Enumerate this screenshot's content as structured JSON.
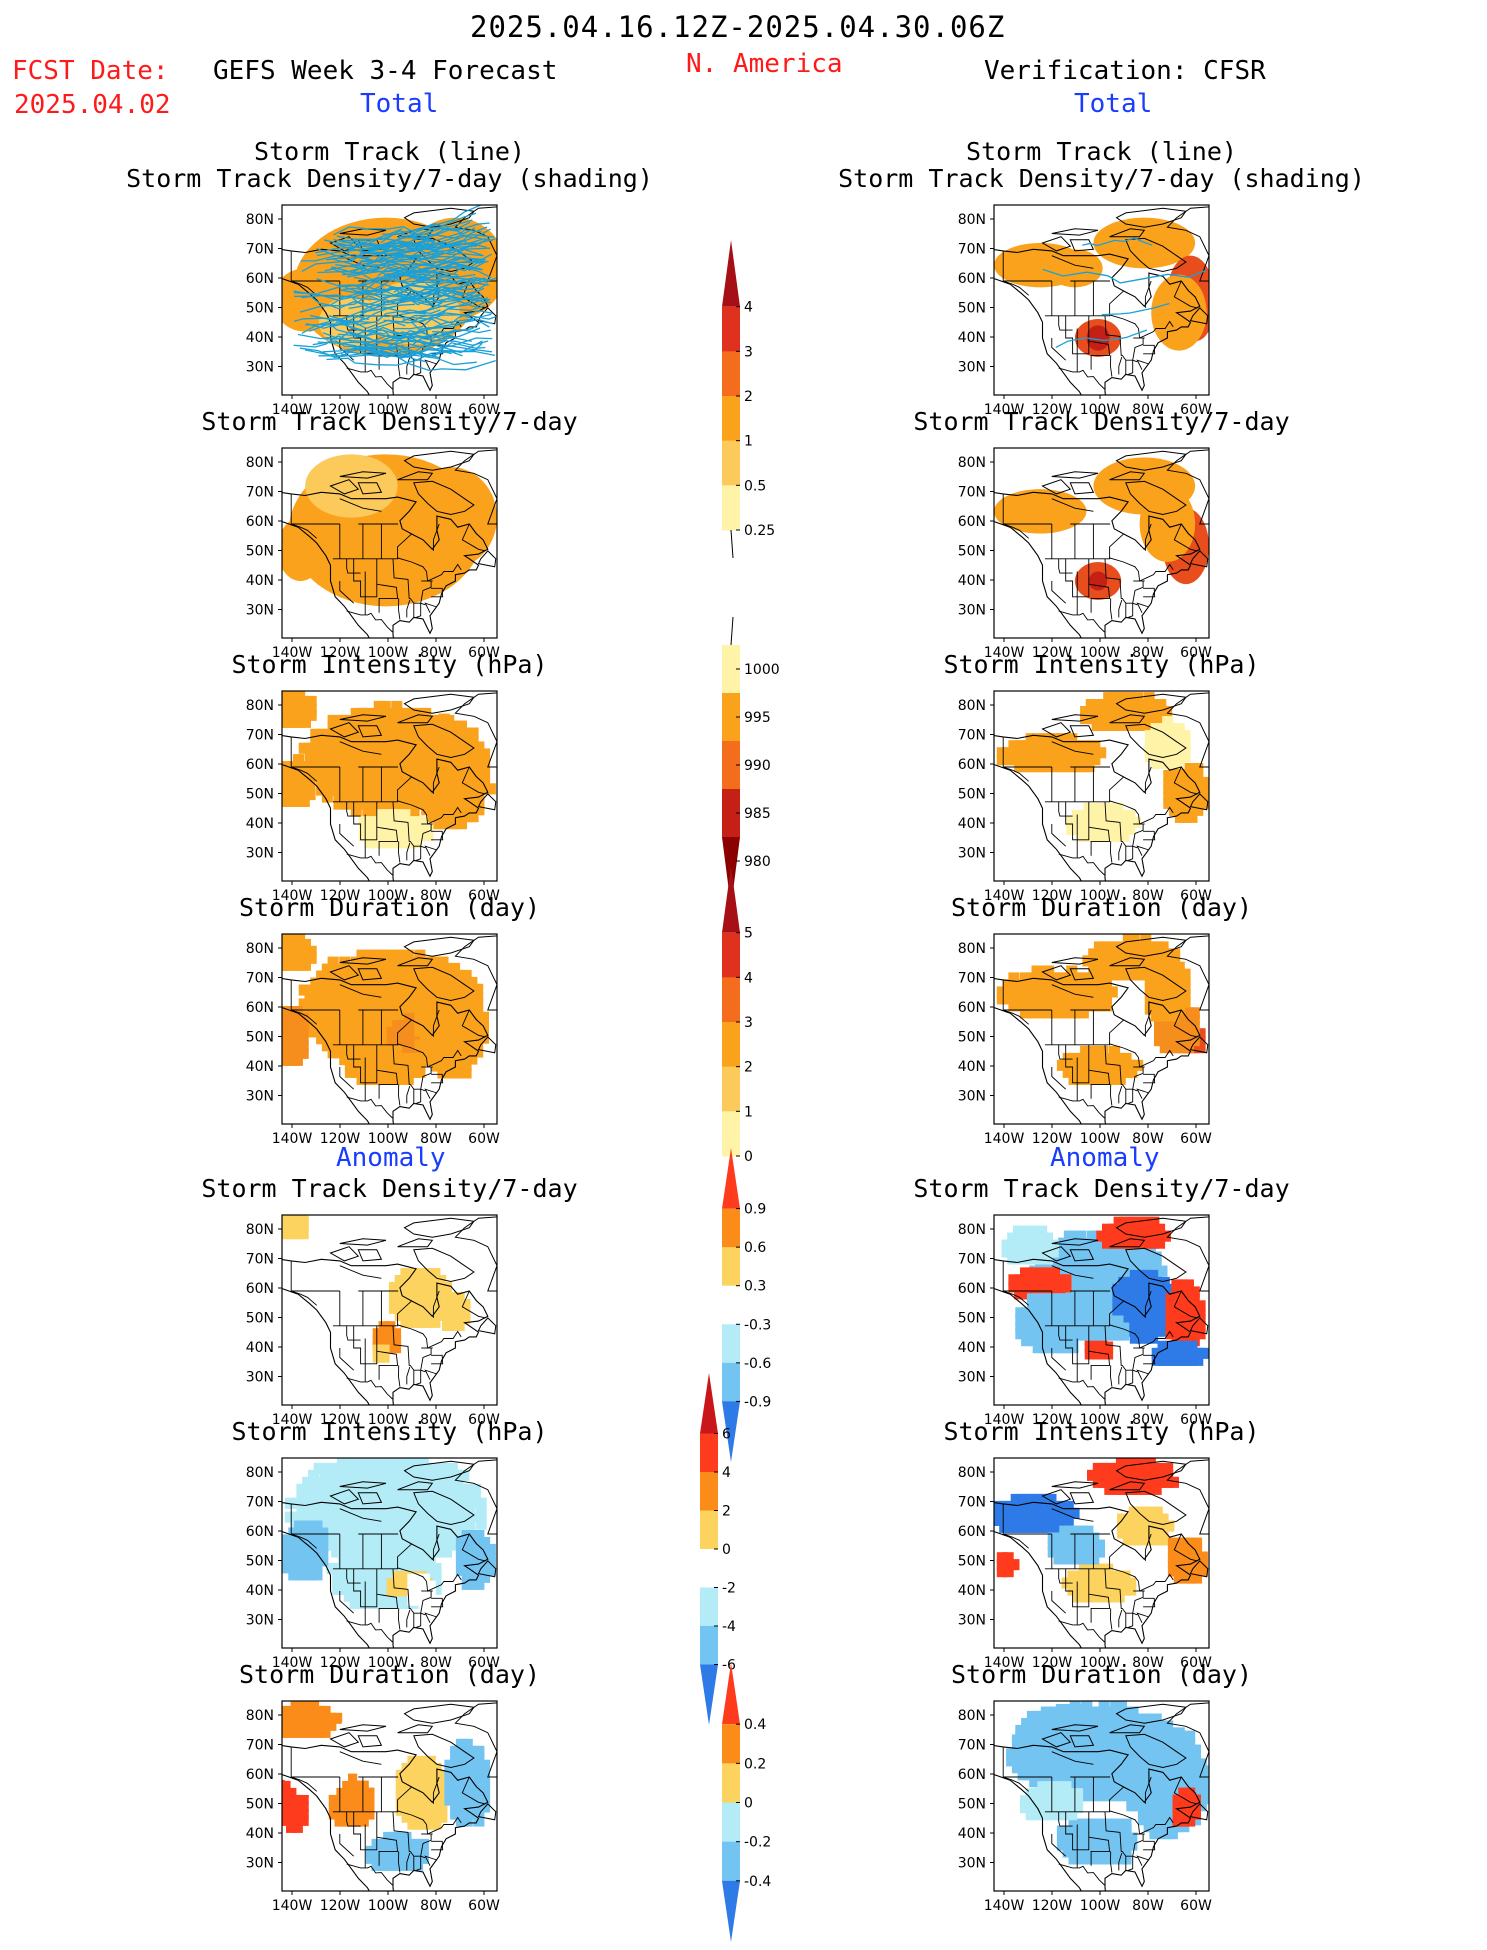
{
  "header": {
    "period": "2025.04.16.12Z-2025.04.30.06Z",
    "fcst_label": "FCST Date:",
    "fcst_date": "2025.04.02",
    "left_title": "GEFS Week 3-4 Forecast",
    "region": "N. America",
    "right_title": "Verification: CFSR",
    "total_left": "Total",
    "total_right": "Total",
    "anomaly_left": "Anomaly",
    "anomaly_right": "Anomaly"
  },
  "map_axes": {
    "lat_ticks": [
      "80N",
      "70N",
      "60N",
      "50N",
      "40N",
      "30N"
    ],
    "lon_ticks": [
      "140W",
      "120W",
      "100W",
      "80W",
      "60W"
    ]
  },
  "panels": [
    {
      "id": "track-total",
      "title_lines": [
        "Storm Track (line)",
        "Storm Track Density/7-day (shading)"
      ]
    },
    {
      "id": "density-total",
      "title_lines": [
        "Storm Track Density/7-day"
      ]
    },
    {
      "id": "intensity-total",
      "title_lines": [
        "Storm Intensity (hPa)"
      ]
    },
    {
      "id": "duration-total",
      "title_lines": [
        "Storm Duration (day)"
      ]
    },
    {
      "id": "density-anom",
      "title_lines": [
        "Storm Track Density/7-day"
      ]
    },
    {
      "id": "intensity-anom",
      "title_lines": [
        "Storm Intensity (hPa)"
      ]
    },
    {
      "id": "duration-anom",
      "title_lines": [
        "Storm Duration (day)"
      ]
    }
  ],
  "colorbars": [
    {
      "id": "density",
      "labels": [
        "4",
        "3",
        "2",
        "1",
        "0.5",
        "0.25"
      ],
      "colors": [
        "#a50f15",
        "#e0301e",
        "#f46d1d",
        "#fba21c",
        "#fcc95b",
        "#fff3a8"
      ]
    },
    {
      "id": "intensity",
      "labels": [
        "1000",
        "995",
        "990",
        "985",
        "980"
      ],
      "colors": [
        "#fff3a8",
        "#fba21c",
        "#f46d1d",
        "#c42016",
        "#8b0000"
      ]
    },
    {
      "id": "duration",
      "labels": [
        "5",
        "4",
        "3",
        "2",
        "1",
        "0"
      ],
      "colors": [
        "#a50f15",
        "#e0301e",
        "#f46d1d",
        "#fba21c",
        "#fcc95b",
        "#fff3a8"
      ]
    },
    {
      "id": "density-anom",
      "labels": [
        "0.9",
        "0.6",
        "0.3",
        "-0.3",
        "-0.6",
        "-0.9"
      ],
      "colors": [
        "#ff3b1d",
        "#fb8c1a",
        "#fcd35e",
        "#ffffff",
        "#b3ecf7",
        "#74c4f2",
        "#2e7be8"
      ]
    },
    {
      "id": "intensity-anom",
      "labels": [
        "6",
        "4",
        "2",
        "0",
        "-2",
        "-4",
        "-6"
      ],
      "colors": [
        "#c8161a",
        "#ff3b1d",
        "#fb8c1a",
        "#fcd35e",
        "#ffffff",
        "#b3ecf7",
        "#74c4f2",
        "#2e7be8"
      ]
    },
    {
      "id": "duration-anom",
      "labels": [
        "0.4",
        "0.2",
        "0",
        "-0.2",
        "-0.4"
      ],
      "colors": [
        "#ff3b1d",
        "#fb8c1a",
        "#fcd35e",
        "#b3ecf7",
        "#74c4f2",
        "#2e7be8"
      ]
    }
  ],
  "colors": {
    "land_line": "#000000",
    "track_line": "#1aa0d8"
  }
}
